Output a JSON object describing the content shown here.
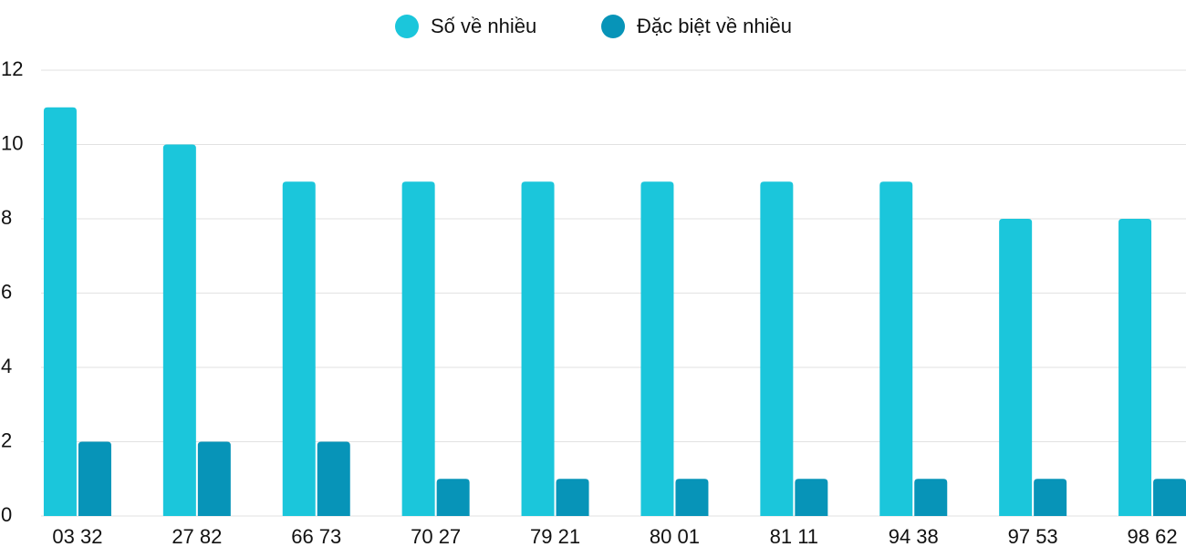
{
  "chart_data": {
    "type": "bar",
    "categories": [
      "03 32",
      "27 82",
      "66 73",
      "70 27",
      "79 21",
      "80 01",
      "81 11",
      "94 38",
      "97 53",
      "98 62"
    ],
    "series": [
      {
        "name": "Số về nhiều",
        "color": "#1bc6db",
        "values": [
          11,
          10,
          9,
          9,
          9,
          9,
          9,
          9,
          8,
          8
        ]
      },
      {
        "name": "Đặc biệt về nhiều",
        "color": "#0794b8",
        "values": [
          2,
          2,
          2,
          1,
          1,
          1,
          1,
          1,
          1,
          1
        ]
      }
    ],
    "ylim": [
      0,
      12
    ],
    "yticks": [
      0,
      2,
      4,
      6,
      8,
      10,
      12
    ],
    "grid": true
  }
}
